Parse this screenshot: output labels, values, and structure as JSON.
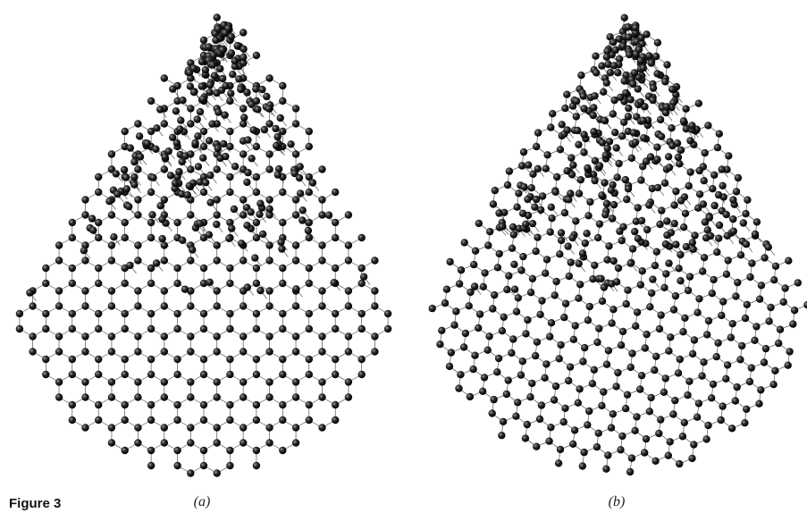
{
  "figure": {
    "panels": [
      {
        "label": "(a)"
      },
      {
        "label": "(b)"
      }
    ],
    "caption": "Figure 3"
  }
}
